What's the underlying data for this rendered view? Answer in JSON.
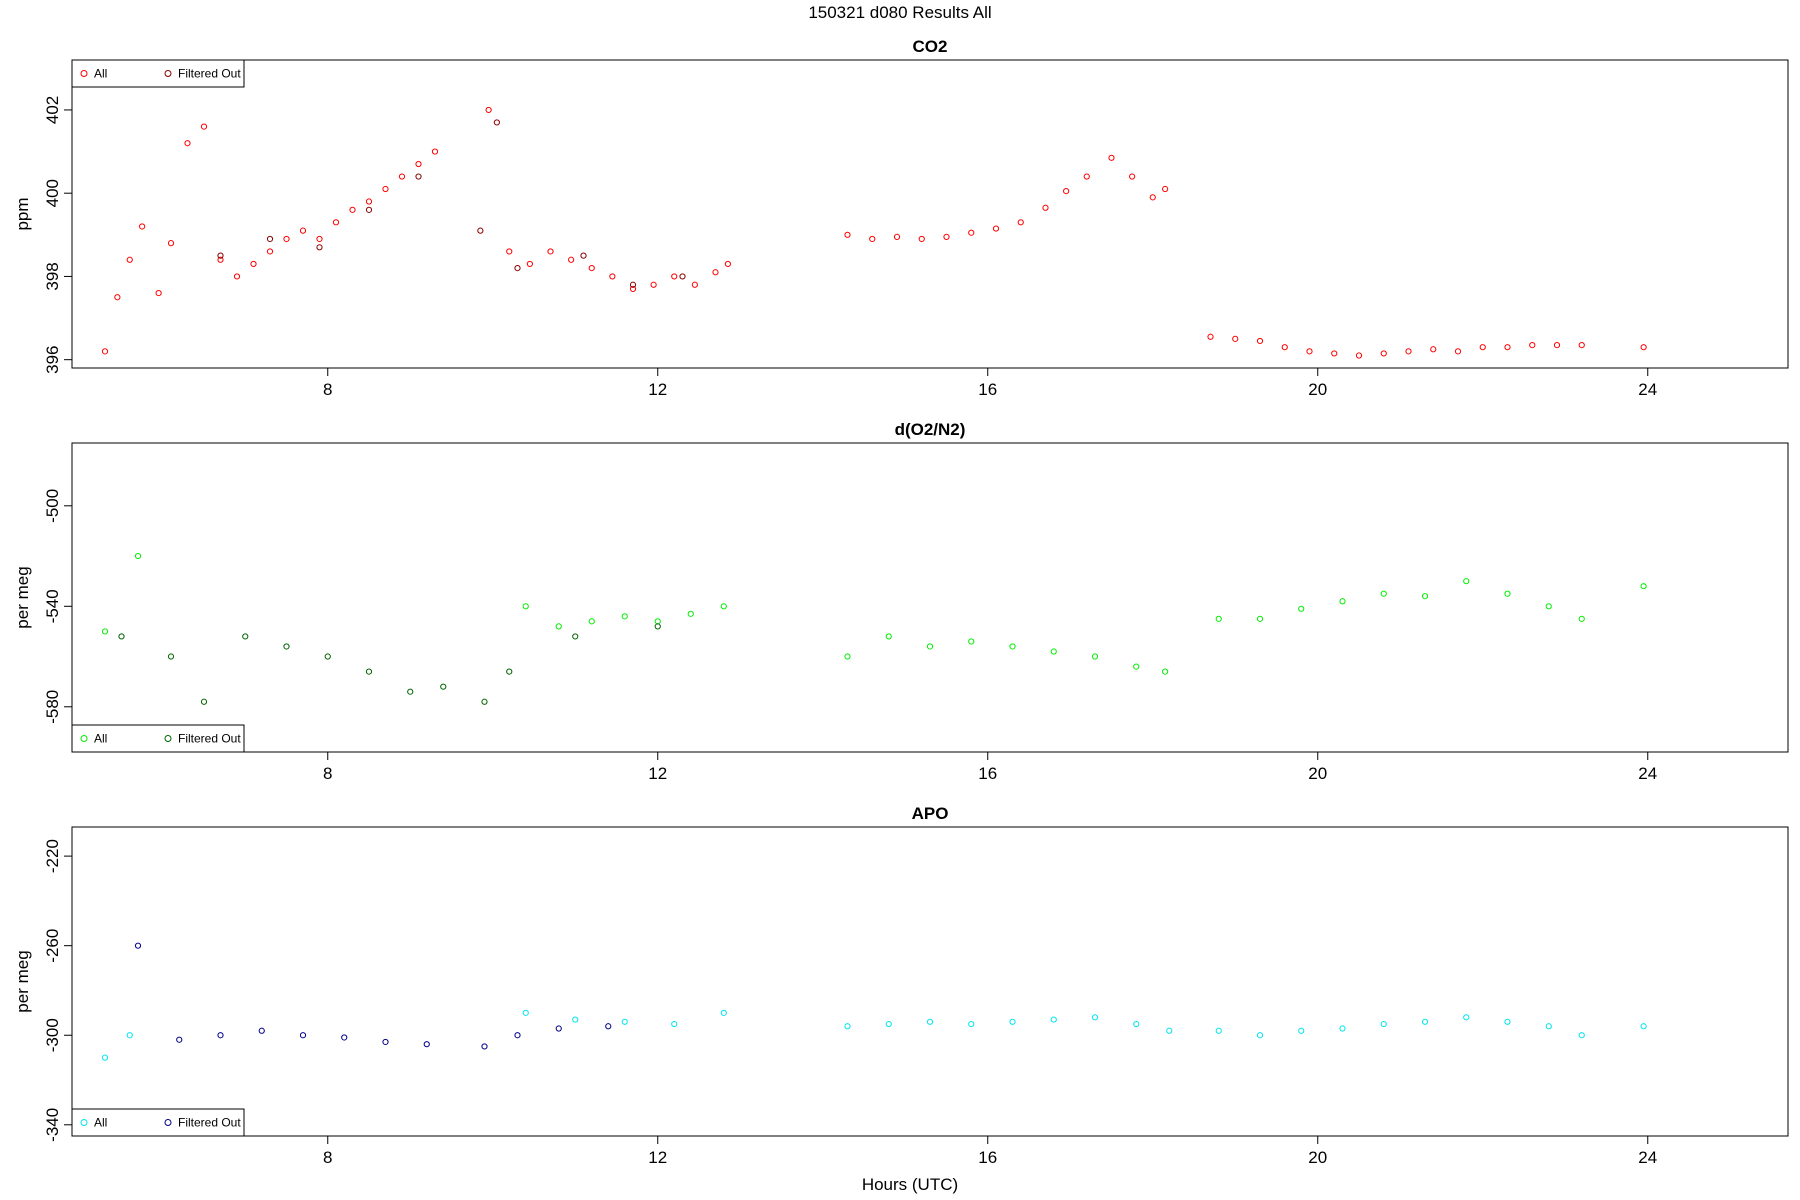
{
  "figure_title": "150321   d080   Results All",
  "x_axis_label": "Hours (UTC)",
  "colors": {
    "co2_all": "#ff0000",
    "co2_filtered": "#8b0000",
    "o2_all": "#00ee00",
    "o2_filtered": "#006400",
    "apo_all": "#00e5ee",
    "apo_filtered": "#00008b"
  },
  "chart_data": [
    {
      "type": "scatter",
      "title": "CO2",
      "xlabel": "Hours (UTC)",
      "ylabel": "ppm",
      "xlim": [
        4.9,
        25.7
      ],
      "ylim": [
        395.8,
        403.2
      ],
      "xticks": [
        8,
        12,
        16,
        20,
        24
      ],
      "yticks": [
        396,
        398,
        400,
        402
      ],
      "legend": [
        "All",
        "Filtered Out"
      ],
      "legend_position": "top-left",
      "grid": false,
      "series": [
        {
          "name": "All",
          "color": "#ff0000",
          "x": [
            5.3,
            5.45,
            5.6,
            5.75,
            5.95,
            6.1,
            6.3,
            6.5,
            6.7,
            6.9,
            7.1,
            7.3,
            7.5,
            7.7,
            7.9,
            8.1,
            8.3,
            8.5,
            8.7,
            8.9,
            9.1,
            9.3,
            9.5,
            9.7,
            9.95,
            10.2,
            10.45,
            10.7,
            10.95,
            11.2,
            11.45,
            11.7,
            11.95,
            12.2,
            12.45,
            12.7,
            12.85,
            14.3,
            14.6,
            14.9,
            15.2,
            15.5,
            15.8,
            16.1,
            16.4,
            16.7,
            16.95,
            17.2,
            17.5,
            17.75,
            18.0,
            18.15,
            18.7,
            19.0,
            19.3,
            19.6,
            19.9,
            20.2,
            20.5,
            20.8,
            21.1,
            21.4,
            21.7,
            22.0,
            22.3,
            22.6,
            22.9,
            23.2,
            23.95
          ],
          "y": [
            396.2,
            397.5,
            398.4,
            399.2,
            397.6,
            398.8,
            401.2,
            401.6,
            398.4,
            398.0,
            398.3,
            398.6,
            398.9,
            399.1,
            398.9,
            399.3,
            399.6,
            399.8,
            400.1,
            400.4,
            400.7,
            401.0,
            null,
            null,
            402.0,
            398.6,
            398.3,
            398.6,
            398.4,
            398.2,
            398.0,
            397.7,
            397.8,
            398.0,
            397.8,
            398.1,
            398.3,
            399.0,
            398.9,
            398.95,
            398.9,
            398.95,
            399.05,
            399.15,
            399.3,
            399.65,
            400.05,
            400.4,
            400.85,
            400.4,
            399.9,
            400.1,
            396.55,
            396.5,
            396.45,
            396.3,
            396.2,
            396.15,
            396.1,
            396.15,
            396.2,
            396.25,
            396.2,
            396.3,
            396.3,
            396.35,
            396.35,
            396.35,
            396.3
          ]
        },
        {
          "name": "Filtered Out",
          "color": "#8b0000",
          "x": [
            6.7,
            7.3,
            7.9,
            8.5,
            9.1,
            9.85,
            10.05,
            10.3,
            11.1,
            11.7,
            12.3
          ],
          "y": [
            398.5,
            398.9,
            398.7,
            399.6,
            400.4,
            399.1,
            401.7,
            398.2,
            398.5,
            397.8,
            398.0
          ]
        }
      ]
    },
    {
      "type": "scatter",
      "title": "d(O2/N2)",
      "xlabel": "Hours (UTC)",
      "ylabel": "per meg",
      "xlim": [
        4.9,
        25.7
      ],
      "ylim": [
        -598,
        -475
      ],
      "xticks": [
        8,
        12,
        16,
        20,
        24
      ],
      "yticks": [
        -500,
        -540,
        -580
      ],
      "legend": [
        "All",
        "Filtered Out"
      ],
      "legend_position": "bottom-left",
      "grid": false,
      "series": [
        {
          "name": "All",
          "color": "#00ee00",
          "x": [
            5.3,
            5.7,
            10.4,
            10.8,
            11.2,
            11.6,
            12.0,
            12.4,
            12.8,
            14.3,
            14.8,
            15.3,
            15.8,
            16.3,
            16.8,
            17.3,
            17.8,
            18.15,
            18.8,
            19.3,
            19.8,
            20.3,
            20.8,
            21.3,
            21.8,
            22.3,
            22.8,
            23.2,
            23.95
          ],
          "y": [
            -550,
            -520,
            -540,
            -548,
            -546,
            -544,
            -546,
            -543,
            -540,
            -560,
            -552,
            -556,
            -554,
            -556,
            -558,
            -560,
            -564,
            -566,
            -545,
            -545,
            -541,
            -538,
            -535,
            -536,
            -530,
            -535,
            -540,
            -545,
            -532
          ]
        },
        {
          "name": "Filtered Out",
          "color": "#006400",
          "x": [
            5.5,
            6.1,
            6.5,
            7.0,
            7.5,
            8.0,
            8.5,
            9.0,
            9.4,
            9.9,
            10.2,
            11.0,
            12.0
          ],
          "y": [
            -552,
            -560,
            -578,
            -552,
            -556,
            -560,
            -566,
            -574,
            -572,
            -578,
            -566,
            -552,
            -548
          ]
        }
      ]
    },
    {
      "type": "scatter",
      "title": "APO",
      "xlabel": "Hours (UTC)",
      "ylabel": "per meg",
      "xlim": [
        4.9,
        25.7
      ],
      "ylim": [
        -345,
        -207
      ],
      "xticks": [
        8,
        12,
        16,
        20,
        24
      ],
      "yticks": [
        -220,
        -260,
        -300,
        -340
      ],
      "legend": [
        "All",
        "Filtered Out"
      ],
      "legend_position": "bottom-left",
      "grid": false,
      "series": [
        {
          "name": "All",
          "color": "#00e5ee",
          "x": [
            5.3,
            5.6,
            10.4,
            11.0,
            11.6,
            12.2,
            12.8,
            14.3,
            14.8,
            15.3,
            15.8,
            16.3,
            16.8,
            17.3,
            17.8,
            18.2,
            18.8,
            19.3,
            19.8,
            20.3,
            20.8,
            21.3,
            21.8,
            22.3,
            22.8,
            23.2,
            23.95
          ],
          "y": [
            -310,
            -300,
            -290,
            -293,
            -294,
            -295,
            -290,
            -296,
            -295,
            -294,
            -295,
            -294,
            -293,
            -292,
            -295,
            -298,
            -298,
            -300,
            -298,
            -297,
            -295,
            -294,
            -292,
            -294,
            -296,
            -300,
            -296
          ]
        },
        {
          "name": "Filtered Out",
          "color": "#00008b",
          "x": [
            5.7,
            6.2,
            6.7,
            7.2,
            7.7,
            8.2,
            8.7,
            9.2,
            9.9,
            10.3,
            10.8,
            11.4
          ],
          "y": [
            -260,
            -302,
            -300,
            -298,
            -300,
            -301,
            -303,
            -304,
            -305,
            -300,
            -297,
            -296
          ]
        }
      ]
    }
  ]
}
